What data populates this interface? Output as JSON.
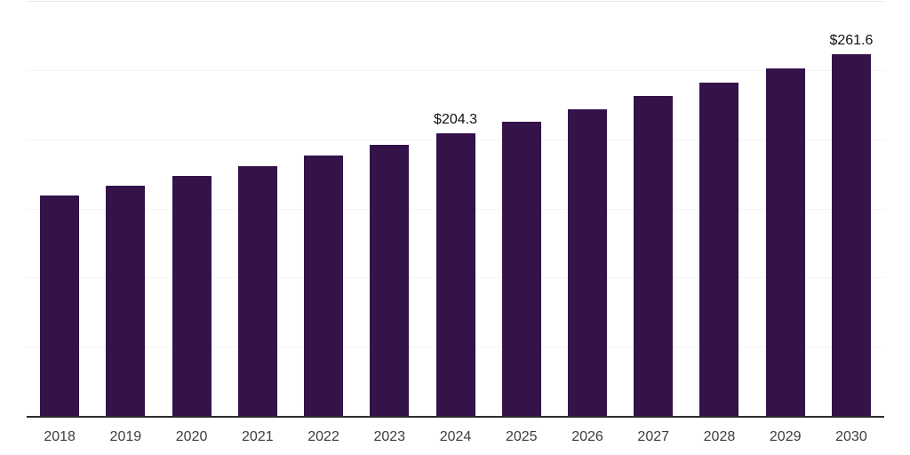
{
  "chart_data": {
    "type": "bar",
    "title": "",
    "xlabel": "",
    "ylabel": "",
    "categories": [
      "2018",
      "2019",
      "2020",
      "2021",
      "2022",
      "2023",
      "2024",
      "2025",
      "2026",
      "2027",
      "2028",
      "2029",
      "2030"
    ],
    "values": [
      159.4,
      166.1,
      173.2,
      180.5,
      188.1,
      196.0,
      204.3,
      212.9,
      221.9,
      231.3,
      240.9,
      251.1,
      261.6
    ],
    "data_labels": {
      "2024": "$204.3",
      "2030": "$261.6"
    },
    "ylim": [
      0,
      300
    ],
    "gridlines": {
      "count": 6,
      "orientation": "horizontal"
    },
    "legend": "none",
    "colors": {
      "bar": "#34124A",
      "axis_line": "#2b2b2b",
      "gridline": "#f4f4f4",
      "gridline_top": "#e9e9e9",
      "tick_label": "#3d3d3d",
      "data_label": "#111111",
      "background": "#ffffff"
    }
  }
}
